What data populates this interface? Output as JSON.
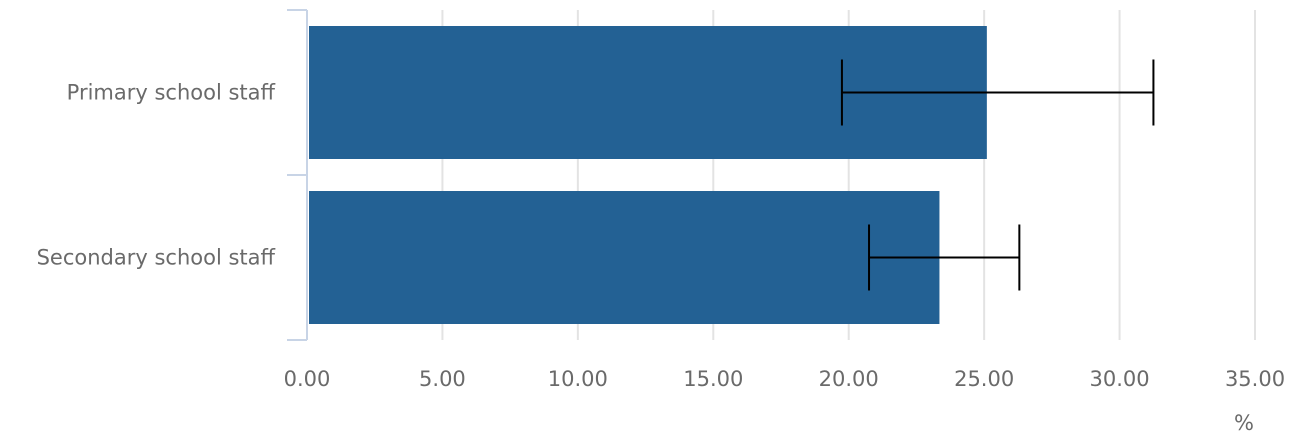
{
  "chart_data": {
    "type": "bar",
    "orientation": "horizontal",
    "categories": [
      "Primary school staff",
      "Secondary school staff"
    ],
    "values": [
      25.1,
      23.35
    ],
    "error_low": [
      19.75,
      20.75
    ],
    "error_high": [
      31.25,
      26.3
    ],
    "xlim": [
      0,
      35
    ],
    "x_ticks": [
      "0.00",
      "5.00",
      "10.00",
      "15.00",
      "20.00",
      "25.00",
      "30.00",
      "35.00"
    ],
    "x_unit": "%",
    "grid": "vertical",
    "bar_color": "#236194",
    "error_bar_color": "#000000",
    "grid_color": "#e3e3e3",
    "axis_color": "#c8d4e6"
  }
}
